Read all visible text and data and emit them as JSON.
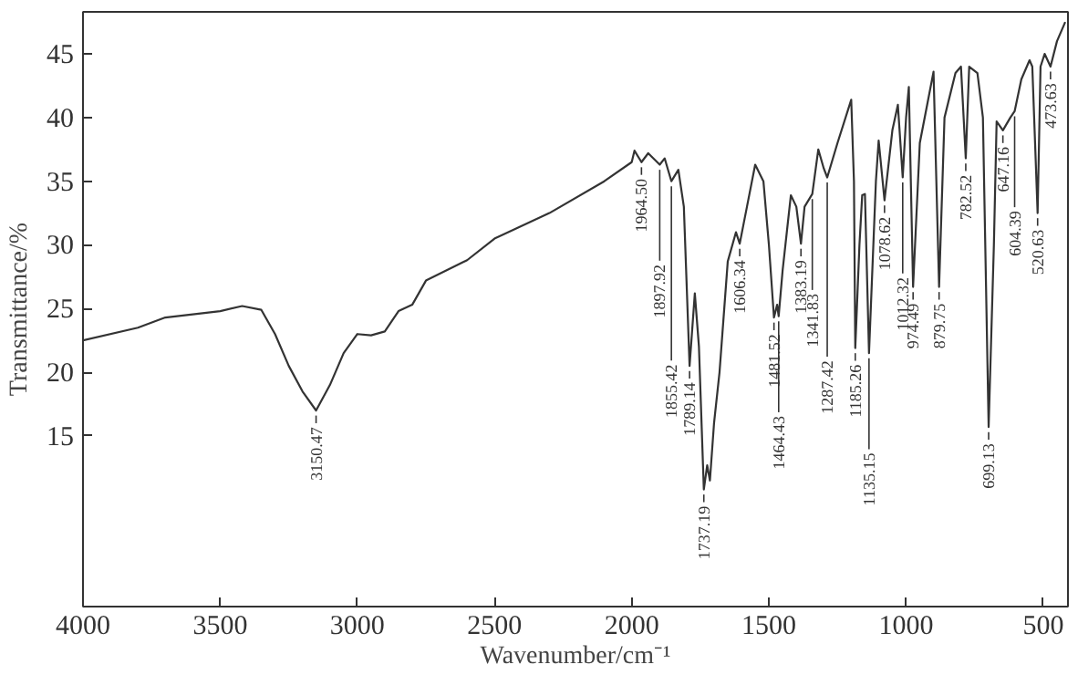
{
  "chart_data": {
    "type": "line",
    "xlabel": "Wavenumber/cm⁻¹",
    "ylabel": "Transmittance/%",
    "xlim": [
      4000,
      410
    ],
    "ylim": [
      1.6,
      48.3
    ],
    "xticks": [
      4000,
      3500,
      3000,
      2500,
      2000,
      1500,
      1000,
      500
    ],
    "yticks": [
      15,
      20,
      25,
      30,
      35,
      40,
      45
    ],
    "grid": false,
    "marker": "none",
    "line_style": "solid",
    "x": [
      4000,
      3800,
      3700,
      3500,
      3420,
      3350,
      3300,
      3250,
      3200,
      3150.47,
      3100,
      3050,
      3000,
      2950,
      2900,
      2850,
      2800,
      2750,
      2600,
      2500,
      2300,
      2100,
      2000,
      1990,
      1964.5,
      1940,
      1897.92,
      1880,
      1855.42,
      1830,
      1810,
      1789.14,
      1770,
      1755,
      1737.19,
      1725,
      1715,
      1700,
      1680,
      1650,
      1620,
      1606.34,
      1580,
      1550,
      1520,
      1500,
      1481.52,
      1470,
      1464.43,
      1450,
      1420,
      1400,
      1383.19,
      1370,
      1341.83,
      1320,
      1300,
      1287.42,
      1250,
      1200,
      1190,
      1185.26,
      1170,
      1160,
      1150,
      1135.15,
      1110,
      1100,
      1078.62,
      1050,
      1030,
      1012.32,
      1000,
      990,
      974.49,
      950,
      900,
      879.75,
      860,
      820,
      800,
      782.52,
      770,
      740,
      720,
      699.13,
      680,
      670,
      647.16,
      620,
      604.39,
      580,
      550,
      540,
      520.63,
      510,
      495,
      473.63,
      450,
      420
    ],
    "series": [
      {
        "color": "#333333",
        "values": [
          22.5,
          23.5,
          24.3,
          24.8,
          25.2,
          24.9,
          23,
          20.5,
          18.5,
          17.0,
          19,
          21.5,
          23.0,
          22.9,
          23.2,
          24.8,
          25.3,
          27.2,
          28.8,
          30.5,
          32.5,
          35,
          36.5,
          37.4,
          36.5,
          37.2,
          36.3,
          36.8,
          35,
          35.9,
          33,
          20.5,
          26.2,
          22,
          10.8,
          12.7,
          11.5,
          16,
          20,
          28.7,
          31,
          30.1,
          33,
          36.3,
          35,
          30,
          24.3,
          25.3,
          24.4,
          28,
          33.9,
          33,
          30.1,
          33,
          34,
          37.5,
          36,
          35.3,
          38,
          41.4,
          35,
          21.9,
          30,
          33.9,
          34,
          21.5,
          35,
          38.2,
          33.5,
          39,
          41,
          35.3,
          40,
          42.4,
          26.7,
          38,
          43.6,
          26.7,
          40,
          43.5,
          44,
          36.8,
          44,
          43.5,
          40,
          15.7,
          30,
          39.7,
          39,
          40,
          40.5,
          43,
          44.5,
          44,
          32.5,
          44,
          45,
          44,
          46,
          47.5
        ]
      }
    ],
    "annotations": [
      {
        "text": "3150.47",
        "x": 3150.47,
        "y": 17.0
      },
      {
        "text": "1964.50",
        "x": 1964.5,
        "y": 36.5
      },
      {
        "text": "1897.92",
        "x": 1897.92,
        "y": 36.3
      },
      {
        "text": "1855.42",
        "x": 1855.42,
        "y": 35
      },
      {
        "text": "1789.14",
        "x": 1789.14,
        "y": 20.5
      },
      {
        "text": "1737.19",
        "x": 1737.19,
        "y": 10.8
      },
      {
        "text": "1606.34",
        "x": 1606.34,
        "y": 30.1
      },
      {
        "text": "1481.52",
        "x": 1481.52,
        "y": 24.3
      },
      {
        "text": "1464.43",
        "x": 1464.43,
        "y": 24.4
      },
      {
        "text": "1383.19",
        "x": 1383.19,
        "y": 30.1
      },
      {
        "text": "1341.83",
        "x": 1341.83,
        "y": 34
      },
      {
        "text": "1287.42",
        "x": 1287.42,
        "y": 35.3
      },
      {
        "text": "1185.26",
        "x": 1185.26,
        "y": 21.9
      },
      {
        "text": "1135.15",
        "x": 1135.15,
        "y": 21.5
      },
      {
        "text": "1078.62",
        "x": 1078.62,
        "y": 33.5
      },
      {
        "text": "1012.32",
        "x": 1012.32,
        "y": 35.3
      },
      {
        "text": "974.49",
        "x": 974.49,
        "y": 26.7
      },
      {
        "text": "879.75",
        "x": 879.75,
        "y": 26.7
      },
      {
        "text": "782.52",
        "x": 782.52,
        "y": 36.8
      },
      {
        "text": "699.13",
        "x": 699.13,
        "y": 15.7
      },
      {
        "text": "647.16",
        "x": 647.16,
        "y": 39
      },
      {
        "text": "604.39",
        "x": 604.39,
        "y": 40.5
      },
      {
        "text": "520.63",
        "x": 520.63,
        "y": 32.5
      },
      {
        "text": "473.63",
        "x": 473.63,
        "y": 44
      }
    ]
  }
}
